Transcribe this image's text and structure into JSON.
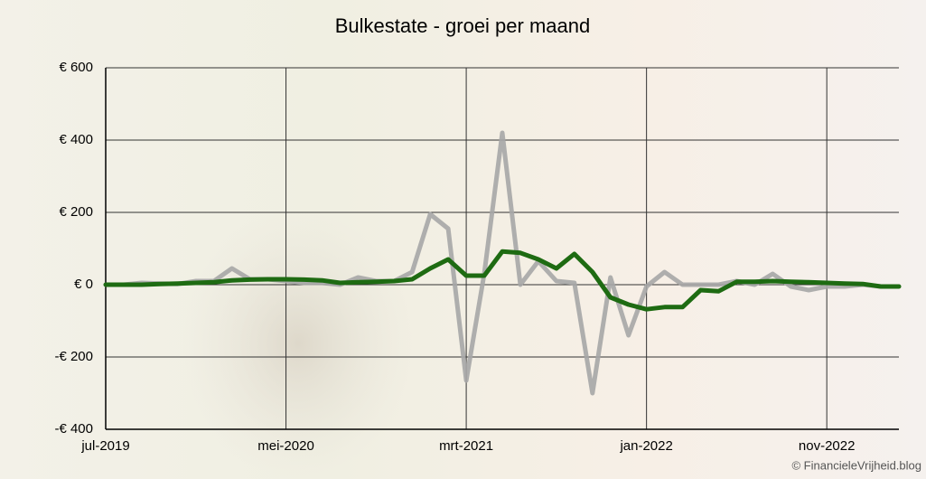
{
  "chart_data": {
    "type": "line",
    "title": "Bulkestate - groei per maand",
    "categories": [
      "jul-2019",
      null,
      null,
      null,
      null,
      null,
      null,
      null,
      null,
      null,
      "mei-2020",
      null,
      null,
      null,
      null,
      null,
      null,
      null,
      null,
      null,
      "mrt-2021",
      null,
      null,
      null,
      null,
      null,
      null,
      null,
      null,
      null,
      "jan-2022",
      null,
      null,
      null,
      null,
      null,
      null,
      null,
      null,
      null,
      "nov-2022",
      null,
      null,
      null,
      null
    ],
    "series": [
      {
        "color": "#a6a6a6",
        "values": [
          0,
          0,
          5,
          3,
          2,
          10,
          10,
          45,
          15,
          15,
          10,
          5,
          5,
          0,
          20,
          10,
          10,
          35,
          195,
          155,
          -265,
          30,
          420,
          0,
          65,
          10,
          5,
          -300,
          20,
          -140,
          -5,
          35,
          0,
          0,
          0,
          10,
          0,
          30,
          -5,
          -15,
          -5,
          -5,
          0,
          -5,
          -5
        ]
      },
      {
        "color": "#1e6b12",
        "values": [
          0,
          0,
          0,
          2,
          3,
          5,
          7,
          12,
          14,
          15,
          15,
          14,
          12,
          5,
          7,
          8,
          10,
          15,
          45,
          70,
          25,
          25,
          92,
          88,
          70,
          45,
          85,
          35,
          -35,
          -55,
          -68,
          -62,
          -62,
          -15,
          -18,
          8,
          8,
          10,
          8,
          7,
          5,
          3,
          2,
          -5,
          -5
        ]
      }
    ],
    "ylim": [
      -400,
      600
    ],
    "yticks": [
      {
        "value": -400,
        "label": "-€ 400"
      },
      {
        "value": -200,
        "label": "-€ 200"
      },
      {
        "value": 0,
        "label": "€ 0"
      },
      {
        "value": 200,
        "label": "€ 200"
      },
      {
        "value": 400,
        "label": "€ 400"
      },
      {
        "value": 600,
        "label": "€ 600"
      }
    ],
    "grid": true,
    "copyright": "© FinancieleVrijheid.blog"
  }
}
